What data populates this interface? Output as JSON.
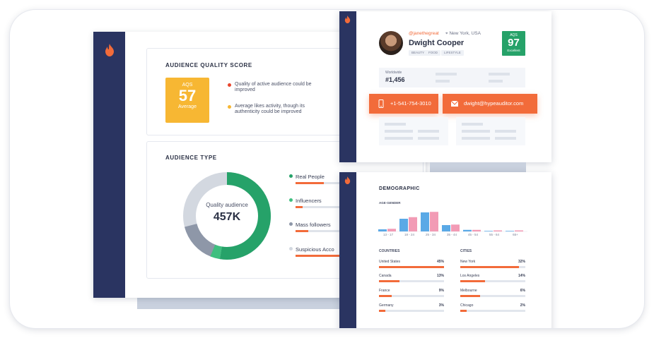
{
  "quality": {
    "title": "AUDIENCE QUALITY SCORE",
    "aqs_label": "AQS",
    "aqs_value": "57",
    "aqs_rating": "Average",
    "notes": [
      {
        "text": "Quality of active audience could be improved",
        "color": "#e8452d"
      },
      {
        "text": "Average likes activity, though its authenticity could be improved",
        "color": "#f7b733"
      }
    ]
  },
  "audience_type": {
    "title": "AUDIENCE TYPE",
    "center_label": "Quality audience",
    "center_value": "457K",
    "legend": [
      {
        "label": "Real People",
        "color": "#26a269",
        "fill": 0.55
      },
      {
        "label": "Influencers",
        "color": "#3fbf7f",
        "fill": 0.12
      },
      {
        "label": "Mass followers",
        "color": "#8e97a8",
        "fill": 0.2
      },
      {
        "label": "Suspicious Acco",
        "color": "#d3d8e0",
        "fill": 0.3
      }
    ]
  },
  "profile": {
    "handle": "@janethegreat",
    "location": "New York, USA",
    "name": "Dwight Cooper",
    "tags": [
      "BEAUTY",
      "FOOD",
      "LIFESTYLE"
    ],
    "aqs_label": "AQS",
    "aqs_value": "97",
    "aqs_rating": "Excellent",
    "rank_label": "Worldwide",
    "rank_value": "#1,456",
    "phone": "+1-541-754-3010",
    "email": "dwight@hypeauditor.com"
  },
  "demographic": {
    "title": "DEMOGRAPHIC",
    "age_label": "AGE·GENDER",
    "age_groups": [
      "13 - 17",
      "18 - 24",
      "25 - 34",
      "35 - 44",
      "45 - 54",
      "55 - 64",
      "65+"
    ],
    "countries_title": "COUNTRIES",
    "cities_title": "CITIES",
    "countries": [
      {
        "name": "United States",
        "pct": "45%"
      },
      {
        "name": "Canada",
        "pct": "13%"
      },
      {
        "name": "France",
        "pct": "9%"
      },
      {
        "name": "Germany",
        "pct": "3%"
      }
    ],
    "cities": [
      {
        "name": "New York",
        "pct": "32%"
      },
      {
        "name": "Los Angeles",
        "pct": "14%"
      },
      {
        "name": "Melbourne",
        "pct": "6%"
      },
      {
        "name": "Chicago",
        "pct": "2%"
      }
    ],
    "colors": {
      "male": "#5aa9e6",
      "female": "#f29bb5"
    }
  },
  "chart_data": {
    "type": "bar",
    "categories": [
      "13 - 17",
      "18 - 24",
      "25 - 34",
      "35 - 44",
      "45 - 54",
      "55 - 64",
      "65+"
    ],
    "series": [
      {
        "values": [
          4,
          24,
          36,
          12,
          3,
          1,
          1
        ]
      },
      {
        "values": [
          5,
          27,
          37,
          13,
          3,
          2,
          2
        ]
      }
    ],
    "ylim": [
      0,
      40
    ]
  }
}
